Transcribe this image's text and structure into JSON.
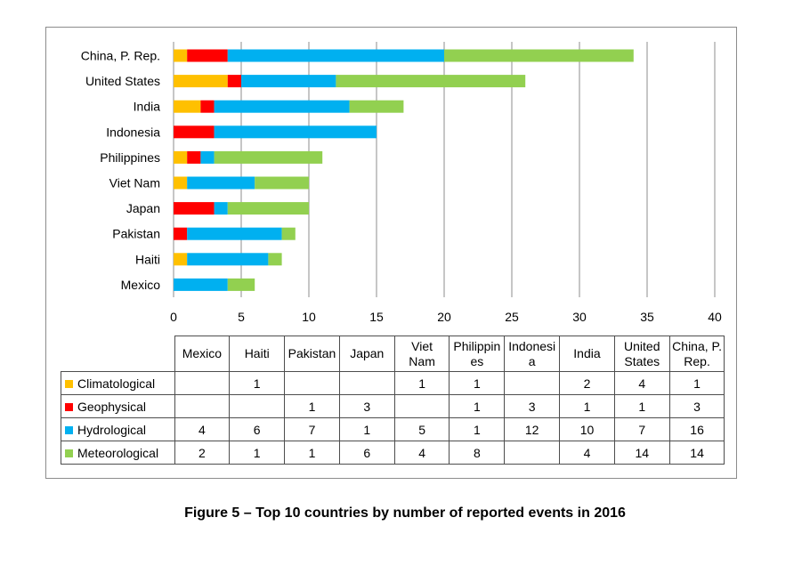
{
  "chart_data": {
    "type": "bar",
    "orientation": "horizontal",
    "stacked": true,
    "categories": [
      "China, P. Rep.",
      "United States",
      "India",
      "Indonesia",
      "Philippines",
      "Viet Nam",
      "Japan",
      "Pakistan",
      "Haiti",
      "Mexico"
    ],
    "series": [
      {
        "name": "Climatological",
        "color": "#ffc000",
        "values": [
          1,
          4,
          2,
          0,
          1,
          1,
          0,
          0,
          1,
          0
        ]
      },
      {
        "name": "Geophysical",
        "color": "#ff0000",
        "values": [
          3,
          1,
          1,
          3,
          1,
          0,
          3,
          1,
          0,
          0
        ]
      },
      {
        "name": "Hydrological",
        "color": "#00b0f0",
        "values": [
          16,
          7,
          10,
          12,
          1,
          5,
          1,
          7,
          6,
          4
        ]
      },
      {
        "name": "Meteorological",
        "color": "#92d050",
        "values": [
          14,
          14,
          4,
          0,
          8,
          4,
          6,
          1,
          1,
          2
        ]
      }
    ],
    "xlim": [
      0,
      40
    ],
    "xticks": [
      "0",
      "5",
      "10",
      "15",
      "20",
      "25",
      "30",
      "35",
      "40"
    ],
    "grid": "vertical",
    "table": {
      "columns": [
        "Mexico",
        "Haiti",
        "Pakistan",
        "Japan",
        "Viet Nam",
        "Philippines",
        "Indonesia",
        "India",
        "United States",
        "China, P. Rep."
      ],
      "column_labels": [
        [
          "Mexico"
        ],
        [
          "Haiti"
        ],
        [
          "Pakistan"
        ],
        [
          "Japan"
        ],
        [
          "Viet",
          "Nam"
        ],
        [
          "Philippin",
          "es"
        ],
        [
          "Indonesi",
          "a"
        ],
        [
          "India"
        ],
        [
          "United",
          "States"
        ],
        [
          "China, P.",
          "Rep."
        ]
      ],
      "rows": [
        {
          "label": "Climatological",
          "cells": [
            "",
            "1",
            "",
            "",
            "1",
            "1",
            "",
            "2",
            "4",
            "1"
          ]
        },
        {
          "label": "Geophysical",
          "cells": [
            "",
            "",
            "1",
            "3",
            "",
            "1",
            "3",
            "1",
            "1",
            "3"
          ]
        },
        {
          "label": "Hydrological",
          "cells": [
            "4",
            "6",
            "7",
            "1",
            "5",
            "1",
            "12",
            "10",
            "7",
            "16"
          ]
        },
        {
          "label": "Meteorological",
          "cells": [
            "2",
            "1",
            "1",
            "6",
            "4",
            "8",
            "",
            "4",
            "14",
            "14"
          ]
        }
      ]
    }
  },
  "caption": "Figure 5 – Top 10 countries by number of reported events in 2016"
}
